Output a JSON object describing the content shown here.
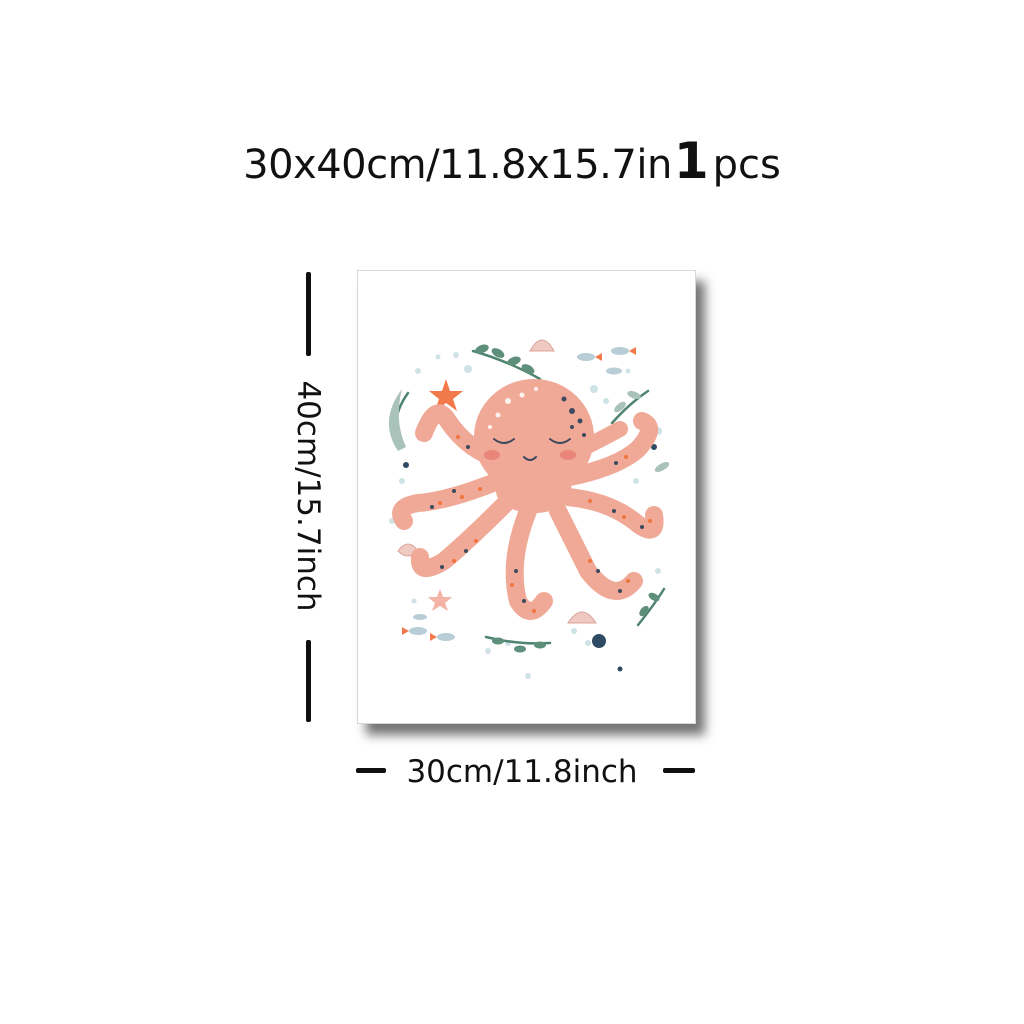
{
  "title": {
    "size": "30x40cm/11.8x15.7in",
    "quantity": "1",
    "unit": "pcs"
  },
  "dimensions": {
    "height_label": "40cm/15.7inch",
    "width_label": "30cm/11.8inch"
  },
  "artwork": {
    "subject": "octopus",
    "colors": {
      "octopus": "#f0a897",
      "cheek": "#e8867a",
      "dots_navy": "#3d4a5e",
      "dots_orange": "#f0743f",
      "seaweed": "#4f8570",
      "starfish": "#f27a4a",
      "bubbles": "#c9dfe3"
    }
  }
}
